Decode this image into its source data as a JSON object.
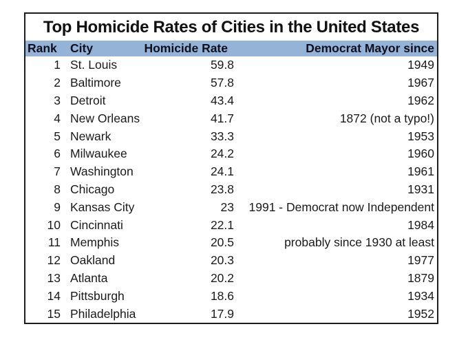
{
  "page": {
    "background_color": "#ffffff"
  },
  "colors": {
    "header_background": "#95b3d7",
    "border": "#1c1c1c",
    "title_text": "#111111",
    "body_text": "#1a1a1a"
  },
  "table": {
    "title": "Top Homicide Rates of Cities in the United States",
    "columns": {
      "rank": "Rank",
      "city": "City",
      "rate": "Homicide Rate",
      "since": "Democrat Mayor since"
    },
    "rows": [
      {
        "rank": "1",
        "city": "St. Louis",
        "rate": "59.8",
        "since": "1949"
      },
      {
        "rank": "2",
        "city": "Baltimore",
        "rate": "57.8",
        "since": "1967"
      },
      {
        "rank": "3",
        "city": "Detroit",
        "rate": "43.4",
        "since": "1962"
      },
      {
        "rank": "4",
        "city": "New Orleans",
        "rate": "41.7",
        "since": "1872 (not a typo!)"
      },
      {
        "rank": "5",
        "city": "Newark",
        "rate": "33.3",
        "since": "1953"
      },
      {
        "rank": "6",
        "city": "Milwaukee",
        "rate": "24.2",
        "since": "1960"
      },
      {
        "rank": "7",
        "city": "Washington",
        "rate": "24.1",
        "since": "1961"
      },
      {
        "rank": "8",
        "city": "Chicago",
        "rate": "23.8",
        "since": "1931"
      },
      {
        "rank": "9",
        "city": "Kansas City",
        "rate": "23",
        "since": "1991 - Democrat now Independent"
      },
      {
        "rank": "10",
        "city": "Cincinnati",
        "rate": "22.1",
        "since": "1984"
      },
      {
        "rank": "11",
        "city": "Memphis",
        "rate": "20.5",
        "since": "probably since 1930 at least"
      },
      {
        "rank": "12",
        "city": "Oakland",
        "rate": "20.3",
        "since": "1977"
      },
      {
        "rank": "13",
        "city": "Atlanta",
        "rate": "20.2",
        "since": "1879"
      },
      {
        "rank": "14",
        "city": "Pittsburgh",
        "rate": "18.6",
        "since": "1934"
      },
      {
        "rank": "15",
        "city": "Philadelphia",
        "rate": "17.9",
        "since": "1952"
      }
    ]
  },
  "chart_data": {
    "type": "table",
    "title": "Top Homicide Rates of Cities in the United States",
    "columns": [
      "Rank",
      "City",
      "Homicide Rate",
      "Democrat Mayor since"
    ],
    "rows": [
      [
        "1",
        "St. Louis",
        "59.8",
        "1949"
      ],
      [
        "2",
        "Baltimore",
        "57.8",
        "1967"
      ],
      [
        "3",
        "Detroit",
        "43.4",
        "1962"
      ],
      [
        "4",
        "New Orleans",
        "41.7",
        "1872 (not a typo!)"
      ],
      [
        "5",
        "Newark",
        "33.3",
        "1953"
      ],
      [
        "6",
        "Milwaukee",
        "24.2",
        "1960"
      ],
      [
        "7",
        "Washington",
        "24.1",
        "1961"
      ],
      [
        "8",
        "Chicago",
        "23.8",
        "1931"
      ],
      [
        "9",
        "Kansas City",
        "23",
        "1991 - Democrat now Independent"
      ],
      [
        "10",
        "Cincinnati",
        "22.1",
        "1984"
      ],
      [
        "11",
        "Memphis",
        "20.5",
        "probably since 1930 at least"
      ],
      [
        "12",
        "Oakland",
        "20.3",
        "1977"
      ],
      [
        "13",
        "Atlanta",
        "20.2",
        "1879"
      ],
      [
        "14",
        "Pittsburgh",
        "18.6",
        "1934"
      ],
      [
        "15",
        "Philadelphia",
        "17.9",
        "1952"
      ]
    ],
    "layout_hints": {
      "header_background": "#95b3d7",
      "numeric_columns_right_aligned": true,
      "outer_border": "black 2px",
      "gridlines": false
    }
  }
}
